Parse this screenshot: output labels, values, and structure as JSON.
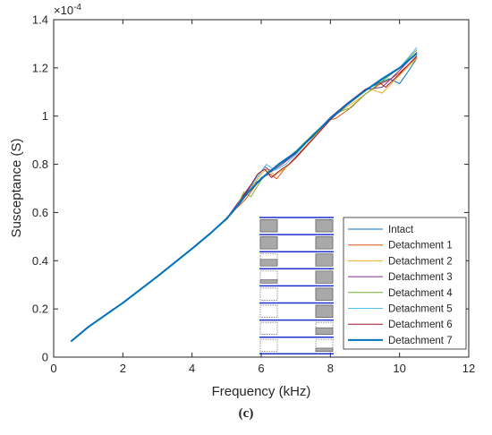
{
  "chart_data": {
    "type": "line",
    "xlabel": "Frequency (kHz)",
    "ylabel": "Susceptance (S)",
    "y_multiplier_label": "×10",
    "y_multiplier_exponent": "-4",
    "xlim": [
      0,
      12
    ],
    "ylim": [
      0,
      1.4
    ],
    "xticks": [
      "0",
      "2",
      "4",
      "6",
      "8",
      "10",
      "12"
    ],
    "yticks": [
      "0",
      "0.2",
      "0.4",
      "0.6",
      "0.8",
      "1",
      "1.2",
      "1.4"
    ],
    "grid": false,
    "legend_position": "bottom-right",
    "series": [
      {
        "name": "Intact",
        "color": "#0072BD",
        "x": [
          0.5,
          1,
          2,
          3,
          4,
          4.5,
          5,
          5.3,
          5.55,
          5.75,
          5.95,
          6.15,
          6.4,
          6.7,
          7,
          7.5,
          8,
          8.5,
          9,
          9.4,
          9.7,
          10,
          10.2,
          10.5
        ],
        "y": [
          0.065,
          0.125,
          0.225,
          0.335,
          0.45,
          0.51,
          0.575,
          0.625,
          0.685,
          0.715,
          0.735,
          0.755,
          0.785,
          0.815,
          0.85,
          0.915,
          0.985,
          1.05,
          1.11,
          1.135,
          1.155,
          1.135,
          1.175,
          1.24
        ]
      },
      {
        "name": "Detachment 1",
        "color": "#D95319",
        "x": [
          0.5,
          1,
          2,
          3,
          4,
          4.5,
          5,
          5.3,
          5.55,
          5.75,
          6,
          6.25,
          6.45,
          6.7,
          7,
          7.5,
          8,
          8.15,
          8.5,
          9,
          9.4,
          9.7,
          10,
          10.5
        ],
        "y": [
          0.065,
          0.125,
          0.225,
          0.335,
          0.45,
          0.51,
          0.575,
          0.62,
          0.655,
          0.695,
          0.745,
          0.76,
          0.74,
          0.785,
          0.825,
          0.905,
          0.985,
          0.99,
          1.025,
          1.09,
          1.13,
          1.15,
          1.18,
          1.245
        ]
      },
      {
        "name": "Detachment 2",
        "color": "#EDB120",
        "x": [
          0.5,
          1,
          2,
          3,
          4,
          4.5,
          5,
          5.3,
          5.5,
          5.7,
          6,
          6.15,
          6.4,
          6.7,
          7,
          7.5,
          8,
          8.5,
          9,
          9.2,
          9.5,
          10,
          10.5
        ],
        "y": [
          0.065,
          0.125,
          0.225,
          0.335,
          0.45,
          0.51,
          0.57,
          0.62,
          0.675,
          0.7,
          0.76,
          0.78,
          0.755,
          0.785,
          0.83,
          0.91,
          0.99,
          1.04,
          1.09,
          1.11,
          1.095,
          1.17,
          1.24
        ]
      },
      {
        "name": "Detachment 3",
        "color": "#7E2F8E",
        "x": [
          0.5,
          1,
          2,
          3,
          4,
          4.5,
          5,
          5.25,
          5.45,
          5.65,
          5.95,
          6.1,
          6.3,
          6.6,
          7,
          7.5,
          8,
          8.5,
          9,
          9.5,
          10,
          10.5
        ],
        "y": [
          0.065,
          0.125,
          0.225,
          0.335,
          0.45,
          0.51,
          0.575,
          0.625,
          0.665,
          0.705,
          0.76,
          0.79,
          0.77,
          0.8,
          0.845,
          0.92,
          0.995,
          1.055,
          1.11,
          1.12,
          1.19,
          1.265
        ]
      },
      {
        "name": "Detachment 4",
        "color": "#77AC30",
        "x": [
          0.5,
          1,
          2,
          3,
          4,
          4.5,
          5,
          5.3,
          5.5,
          5.7,
          6,
          6.2,
          6.5,
          7,
          7.5,
          8,
          8.3,
          8.6,
          9,
          9.5,
          10,
          10.5
        ],
        "y": [
          0.065,
          0.125,
          0.225,
          0.335,
          0.45,
          0.51,
          0.575,
          0.625,
          0.685,
          0.665,
          0.735,
          0.77,
          0.795,
          0.855,
          0.925,
          0.99,
          1.02,
          1.035,
          1.09,
          1.145,
          1.2,
          1.275
        ]
      },
      {
        "name": "Detachment 5",
        "color": "#4DBEEE",
        "x": [
          0.5,
          1,
          2,
          3,
          4,
          4.5,
          5,
          5.3,
          5.6,
          5.8,
          6,
          6.15,
          6.4,
          6.7,
          7,
          7.5,
          8,
          8.5,
          9,
          9.5,
          10,
          10.5
        ],
        "y": [
          0.065,
          0.125,
          0.225,
          0.335,
          0.45,
          0.51,
          0.575,
          0.625,
          0.685,
          0.73,
          0.77,
          0.8,
          0.775,
          0.8,
          0.84,
          0.92,
          0.99,
          1.05,
          1.105,
          1.15,
          1.2,
          1.285
        ]
      },
      {
        "name": "Detachment 6",
        "color": "#A2142F",
        "x": [
          0.5,
          1,
          2,
          3,
          4,
          4.5,
          5,
          5.3,
          5.6,
          5.9,
          6.1,
          6.3,
          6.5,
          6.8,
          7,
          7.5,
          8,
          8.5,
          9,
          9.4,
          9.6,
          10,
          10.5
        ],
        "y": [
          0.065,
          0.125,
          0.225,
          0.335,
          0.45,
          0.51,
          0.575,
          0.625,
          0.69,
          0.76,
          0.78,
          0.745,
          0.77,
          0.8,
          0.83,
          0.905,
          0.985,
          1.05,
          1.11,
          1.14,
          1.12,
          1.175,
          1.25
        ]
      },
      {
        "name": "Detachment 7",
        "color": "#0072BD",
        "width": 2,
        "x": [
          0.5,
          1,
          2,
          3,
          4,
          4.5,
          5,
          5.3,
          5.6,
          6,
          6.5,
          7,
          7.5,
          8,
          8.5,
          9,
          9.5,
          10,
          10.5
        ],
        "y": [
          0.065,
          0.125,
          0.225,
          0.335,
          0.45,
          0.51,
          0.575,
          0.625,
          0.68,
          0.74,
          0.8,
          0.85,
          0.92,
          0.99,
          1.05,
          1.105,
          1.155,
          1.2,
          1.26
        ]
      }
    ]
  },
  "caption": "(c)"
}
